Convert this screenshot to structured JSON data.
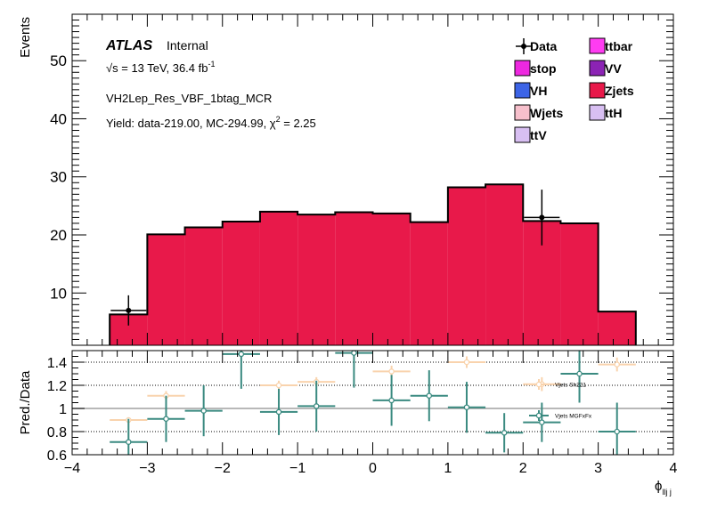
{
  "chart_data": [
    {
      "type": "bar",
      "panel": "main",
      "ylabel": "Events",
      "ylim": [
        1,
        58
      ],
      "yticks": [
        10,
        20,
        30,
        40,
        50
      ],
      "ytick_labels": [
        "10",
        "20",
        "30",
        "40",
        "50"
      ],
      "xlim": [
        -4,
        4
      ],
      "stack_color": "#e8194a",
      "data_color": "#000000",
      "bins": [
        {
          "lo": -3.5,
          "hi": -3.0,
          "mc": 6.3
        },
        {
          "lo": -3.0,
          "hi": -2.5,
          "mc": 20.1
        },
        {
          "lo": -2.5,
          "hi": -2.0,
          "mc": 21.3
        },
        {
          "lo": -2.0,
          "hi": -1.5,
          "mc": 22.3
        },
        {
          "lo": -1.5,
          "hi": -1.0,
          "mc": 24.0
        },
        {
          "lo": -1.0,
          "hi": -0.5,
          "mc": 23.5
        },
        {
          "lo": -0.5,
          "hi": 0.0,
          "mc": 23.9
        },
        {
          "lo": 0.0,
          "hi": 0.5,
          "mc": 23.7
        },
        {
          "lo": 0.5,
          "hi": 1.0,
          "mc": 22.2
        },
        {
          "lo": 1.0,
          "hi": 1.5,
          "mc": 28.2
        },
        {
          "lo": 1.5,
          "hi": 2.0,
          "mc": 28.7
        },
        {
          "lo": 2.0,
          "hi": 2.5,
          "mc": 22.4
        },
        {
          "lo": 2.5,
          "hi": 3.0,
          "mc": 22.0
        },
        {
          "lo": 3.0,
          "hi": 3.5,
          "mc": 6.8
        }
      ],
      "data_points": [
        {
          "x": -3.25,
          "y": 7,
          "err": 2.6
        },
        {
          "x": 2.25,
          "y": 23,
          "err": 4.8
        }
      ],
      "labels": {
        "atlas": "ATLAS",
        "internal": "Internal",
        "energy": "√s = 13 TeV, 36.4 fb",
        "energy_sup": "-1",
        "region": "VH2Lep_Res_VBF_1btag_MCR",
        "yield": "Yield: data-219.00, MC-294.99, χ",
        "yield_sup": "2",
        "yield_tail": " = 2.25"
      },
      "legend": {
        "placement": "top-right",
        "entries": [
          {
            "label": "Data",
            "color": "#000000",
            "marker": "point"
          },
          {
            "label": "ttbar",
            "color": "#ff3cf2",
            "marker": "box"
          },
          {
            "label": "stop",
            "color": "#ee28e0",
            "marker": "box"
          },
          {
            "label": "VV",
            "color": "#8b23b4",
            "marker": "box"
          },
          {
            "label": "VH",
            "color": "#3c64e6",
            "marker": "box"
          },
          {
            "label": "Zjets",
            "color": "#e8194a",
            "marker": "box"
          },
          {
            "label": "Wjets",
            "color": "#f7c0cc",
            "marker": "box"
          },
          {
            "label": "ttH",
            "color": "#d8bff2",
            "marker": "box"
          },
          {
            "label": "ttV",
            "color": "#d8bff2",
            "marker": "box"
          }
        ]
      }
    },
    {
      "type": "scatter",
      "panel": "ratio",
      "ylabel": "Pred./Data",
      "ylim": [
        0.6,
        1.5
      ],
      "yticks": [
        0.6,
        0.8,
        1.0,
        1.2,
        1.4
      ],
      "ytick_labels": [
        "0.6",
        "0.8",
        "1",
        "1.2",
        "1.4"
      ],
      "xlim": [
        -4,
        4
      ],
      "xticks": [
        -4,
        -3,
        -2,
        -1,
        0,
        1,
        2,
        3,
        4
      ],
      "xtick_labels": [
        "−4",
        "−3",
        "−2",
        "−1",
        "0",
        "1",
        "2",
        "3",
        "4"
      ],
      "xlabel": "ϕ",
      "xlabel_sub": "llj j",
      "reference_lines": [
        0.8,
        1.0,
        1.2,
        1.4
      ],
      "series": [
        {
          "name": "Vjets Sh221",
          "color": "#f9d3ad",
          "points": [
            {
              "x": -3.25,
              "y": 0.9,
              "ex": 0.25,
              "ey": 0.0
            },
            {
              "x": -2.75,
              "y": 1.11,
              "ex": 0.25,
              "ey": 0.04
            },
            {
              "x": -1.25,
              "y": 1.2,
              "ex": 0.25,
              "ey": 0.04
            },
            {
              "x": -0.75,
              "y": 1.23,
              "ex": 0.25,
              "ey": 0.04
            },
            {
              "x": 0.25,
              "y": 1.32,
              "ex": 0.25,
              "ey": 0.05
            },
            {
              "x": 1.25,
              "y": 1.4,
              "ex": 0.25,
              "ey": 0.05
            },
            {
              "x": 2.25,
              "y": 1.21,
              "ex": 0.25,
              "ey": 0.06
            },
            {
              "x": 3.25,
              "y": 1.38,
              "ex": 0.25,
              "ey": 0.06
            }
          ]
        },
        {
          "name": "Vjets MGFxFx",
          "color": "#3a8a80",
          "points": [
            {
              "x": -3.25,
              "y": 0.71,
              "ex": 0.25,
              "ey": 0.2
            },
            {
              "x": -2.75,
              "y": 0.91,
              "ex": 0.25,
              "ey": 0.2
            },
            {
              "x": -2.25,
              "y": 0.98,
              "ex": 0.25,
              "ey": 0.22
            },
            {
              "x": -1.75,
              "y": 1.47,
              "ex": 0.25,
              "ey": 0.3
            },
            {
              "x": -1.25,
              "y": 0.97,
              "ex": 0.25,
              "ey": 0.2
            },
            {
              "x": -0.75,
              "y": 1.02,
              "ex": 0.25,
              "ey": 0.22
            },
            {
              "x": -0.25,
              "y": 1.48,
              "ex": 0.25,
              "ey": 0.3
            },
            {
              "x": 0.25,
              "y": 1.07,
              "ex": 0.25,
              "ey": 0.22
            },
            {
              "x": 0.75,
              "y": 1.11,
              "ex": 0.25,
              "ey": 0.22
            },
            {
              "x": 1.25,
              "y": 1.01,
              "ex": 0.25,
              "ey": 0.22
            },
            {
              "x": 1.75,
              "y": 0.79,
              "ex": 0.25,
              "ey": 0.17
            },
            {
              "x": 2.25,
              "y": 0.88,
              "ex": 0.25,
              "ey": 0.17
            },
            {
              "x": 2.75,
              "y": 1.3,
              "ex": 0.25,
              "ey": 0.25
            },
            {
              "x": 3.25,
              "y": 0.8,
              "ex": 0.25,
              "ey": 0.25
            }
          ]
        }
      ]
    }
  ]
}
